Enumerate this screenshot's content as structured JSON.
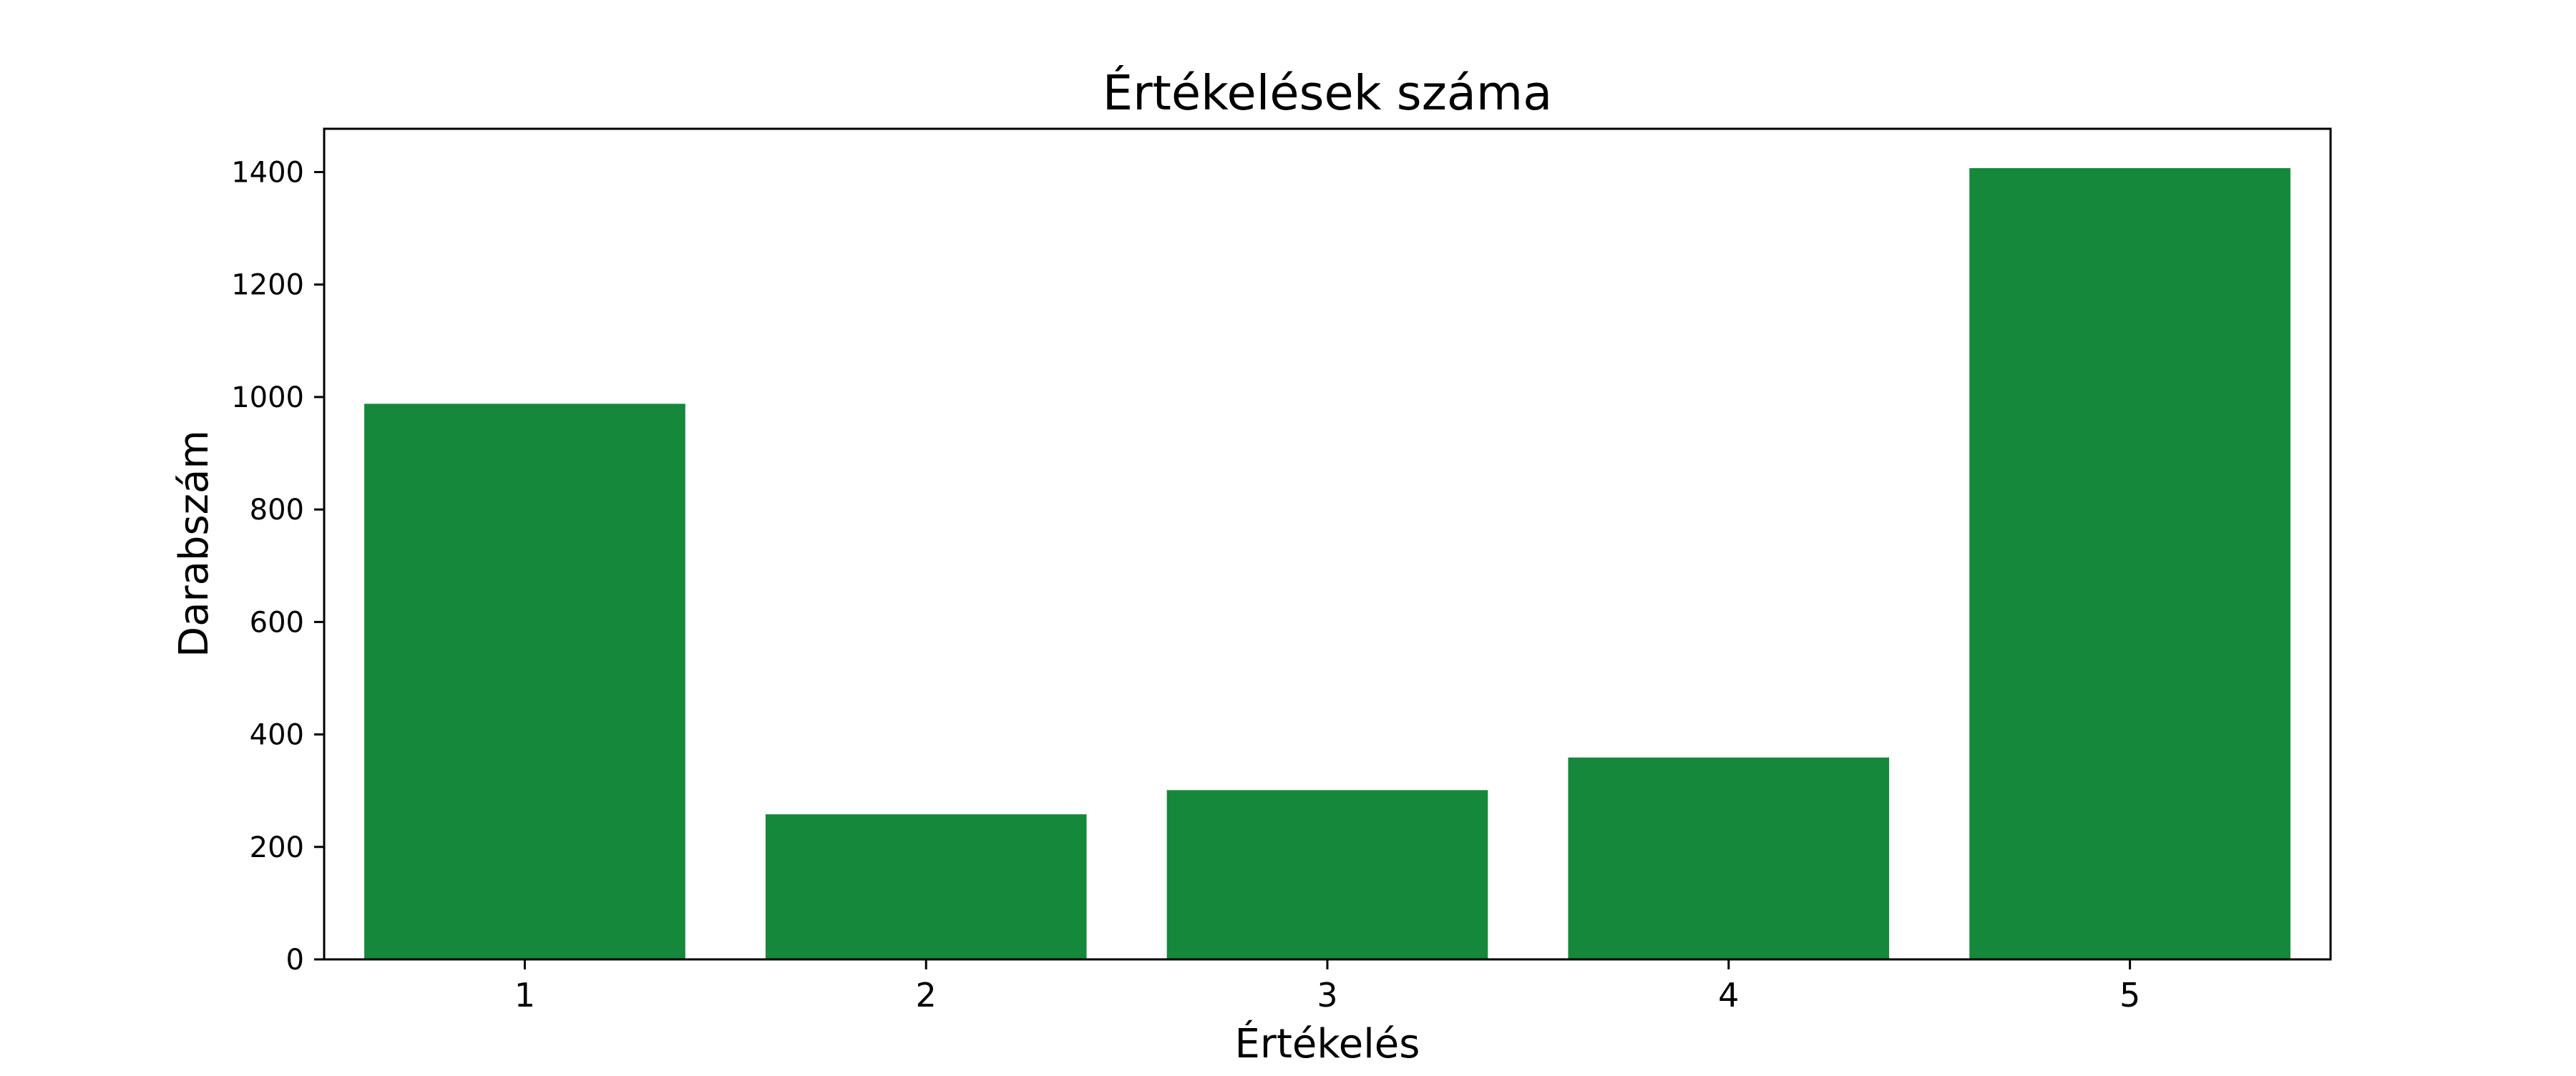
{
  "chart_data": {
    "type": "bar",
    "title": "Értékelések száma",
    "xlabel": "Értékelés",
    "ylabel": "Darabszám",
    "categories": [
      "1",
      "2",
      "3",
      "4",
      "5"
    ],
    "values": [
      988,
      258,
      301,
      359,
      1407
    ],
    "ylim": [
      0,
      1477
    ],
    "yticks": [
      0,
      200,
      400,
      600,
      800,
      1000,
      1200,
      1400
    ],
    "bar_color": "#15883b",
    "grid": false,
    "legend": "none"
  }
}
